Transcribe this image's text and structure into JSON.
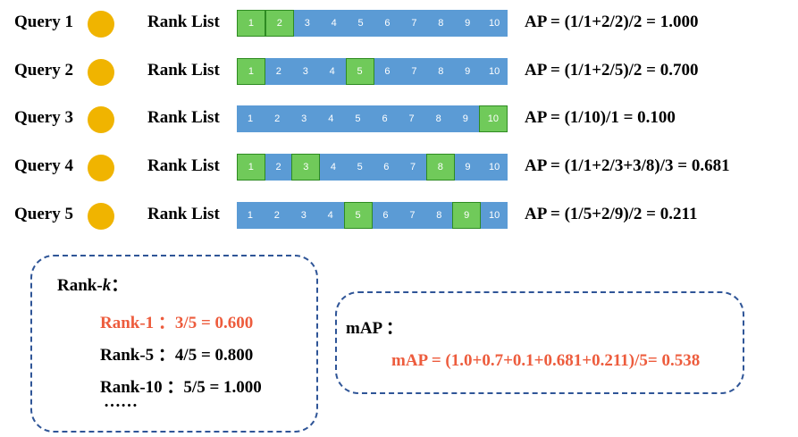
{
  "queries": [
    {
      "label": "Query 1",
      "rank_label": "Rank List",
      "hits": [
        1,
        2
      ],
      "ap": "AP = (1/1+2/2)/2 = 1.000"
    },
    {
      "label": "Query 2",
      "rank_label": "Rank List",
      "hits": [
        1,
        5
      ],
      "ap": "AP = (1/1+2/5)/2 = 0.700"
    },
    {
      "label": "Query 3",
      "rank_label": "Rank List",
      "hits": [
        10
      ],
      "ap": "AP = (1/10)/1 = 0.100"
    },
    {
      "label": "Query 4",
      "rank_label": "Rank List",
      "hits": [
        1,
        3,
        8
      ],
      "ap": "AP = (1/1+2/3+3/8)/3 = 0.681"
    },
    {
      "label": "Query 5",
      "rank_label": "Rank List",
      "hits": [
        5,
        9
      ],
      "ap": "AP = (1/5+2/9)/2 = 0.211"
    }
  ],
  "cells": [
    "1",
    "2",
    "3",
    "4",
    "5",
    "6",
    "7",
    "8",
    "9",
    "10"
  ],
  "rank_k": {
    "title_prefix": "Rank-",
    "title_var": "k",
    "title_suffix": "：",
    "lines": [
      "Rank-1 ：3/5 = 0.600",
      "Rank-5 ：4/5 = 0.800",
      "Rank-10 ：5/5 = 1.000",
      "……"
    ]
  },
  "map": {
    "title": "mAP ：",
    "formula": "mAP = (1.0+0.7+0.1+0.681+0.211)/5= 0.538"
  },
  "colors": {
    "bar": "#5b9bd5",
    "hit": "#70ca5a",
    "dot": "#f0b400",
    "highlight": "#ed5c3d",
    "border": "#2f5597"
  }
}
